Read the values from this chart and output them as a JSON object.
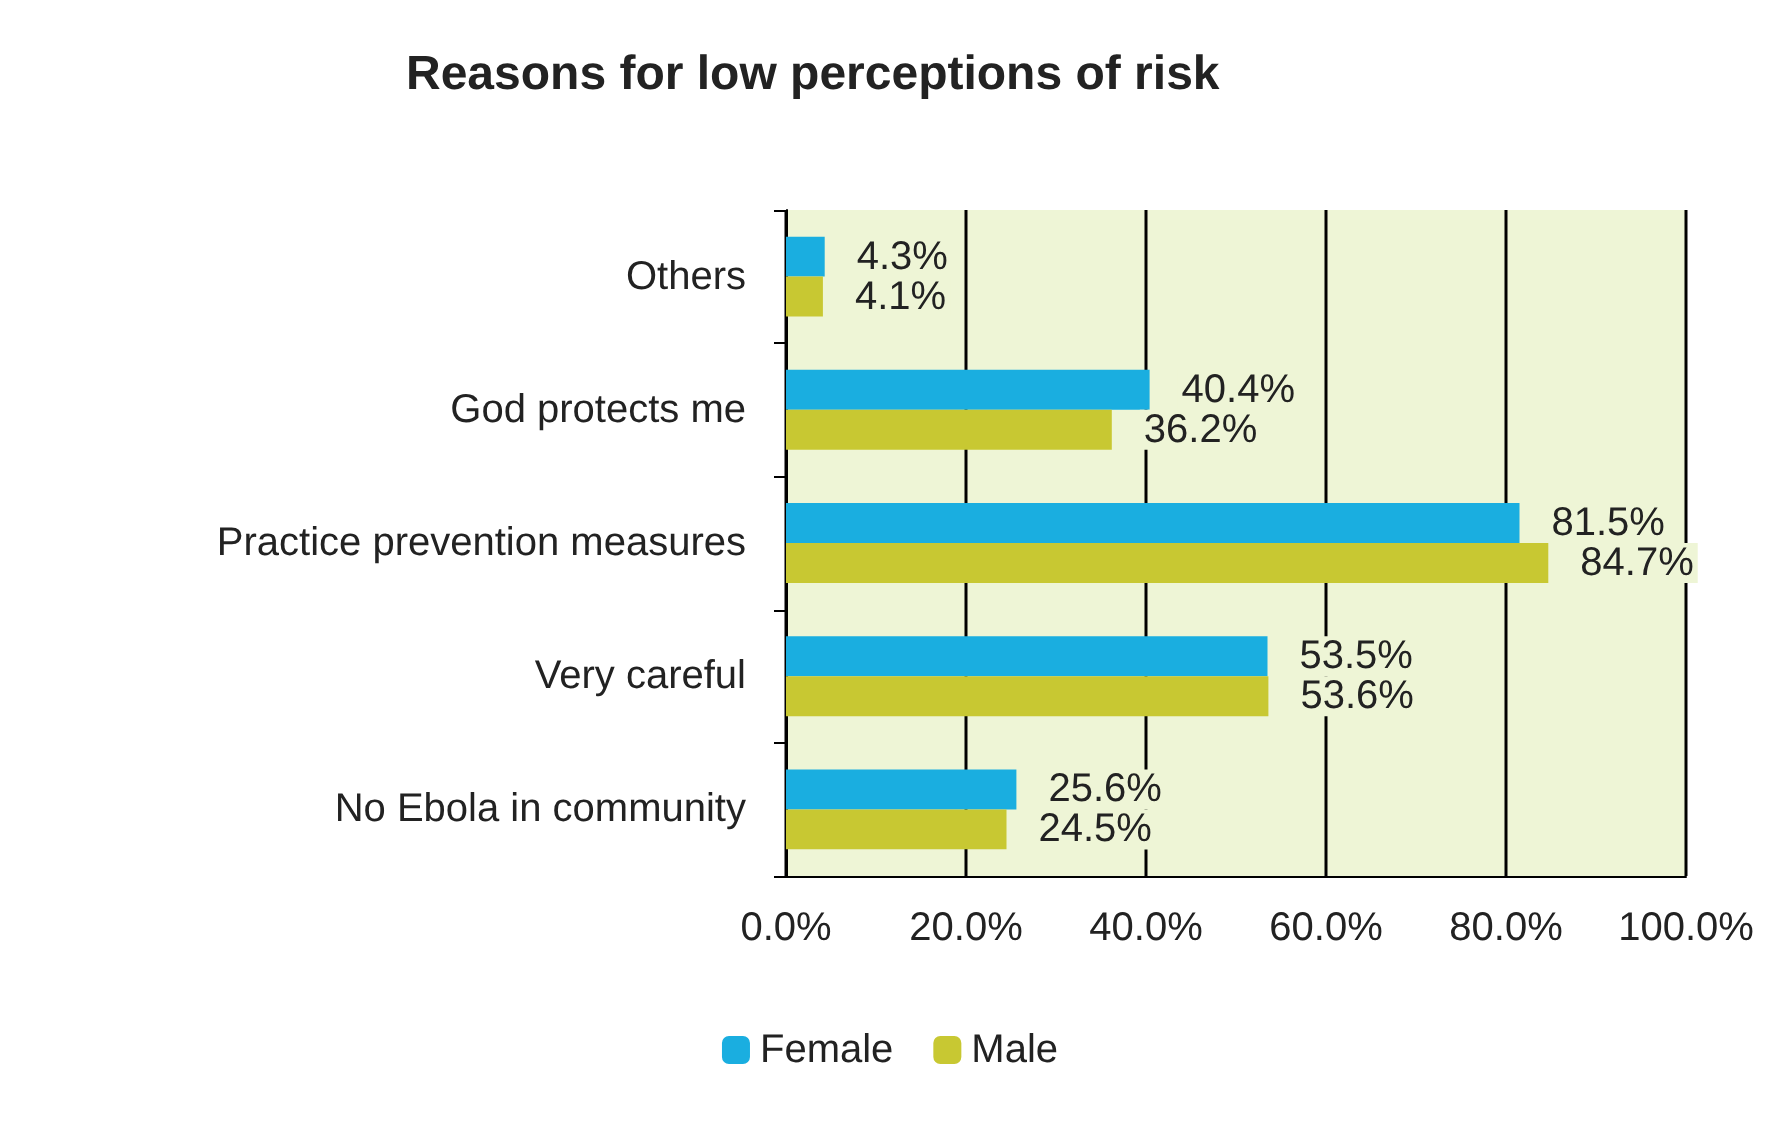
{
  "chart_data": {
    "type": "bar",
    "orientation": "horizontal",
    "title": "Reasons for low perceptions of risk",
    "categories": [
      "Others",
      "God protects me",
      "Practice prevention measures",
      "Very careful",
      "No Ebola in community"
    ],
    "series": [
      {
        "name": "Female",
        "color": "#1aaee0",
        "values": [
          4.3,
          40.4,
          81.5,
          53.5,
          25.6
        ],
        "value_labels": [
          "4.3%",
          "40.4%",
          "81.5%",
          "53.5%",
          "25.6%"
        ]
      },
      {
        "name": "Male",
        "color": "#c8c832",
        "values": [
          4.1,
          36.2,
          84.7,
          53.6,
          24.5
        ],
        "value_labels": [
          "4.1%",
          "36.2%",
          "84.7%",
          "53.6%",
          "24.5%"
        ]
      }
    ],
    "xlim": [
      0,
      100
    ],
    "xticks": [
      {
        "value": 0,
        "label": "0.0%"
      },
      {
        "value": 20,
        "label": "20.0%"
      },
      {
        "value": 40,
        "label": "40.0%"
      },
      {
        "value": 60,
        "label": "60.0%"
      },
      {
        "value": 80,
        "label": "80.0%"
      },
      {
        "value": 100,
        "label": "100.0%"
      }
    ],
    "grid": "x",
    "legend": "bottom"
  }
}
